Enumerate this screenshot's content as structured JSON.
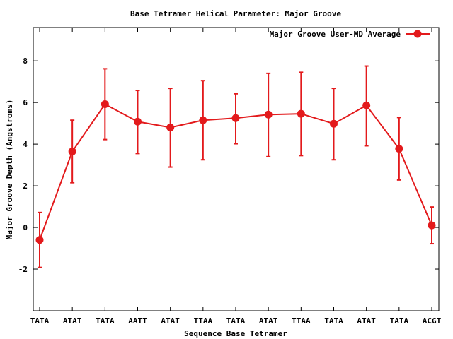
{
  "chart_data": {
    "type": "line",
    "title": "Base Tetramer Helical Parameter: Major Groove",
    "xlabel": "Sequence Base Tetramer",
    "ylabel": "Major Groove Depth (Angstroms)",
    "categories": [
      "TATA",
      "ATAT",
      "TATA",
      "AATT",
      "ATAT",
      "TTAA",
      "TATA",
      "ATAT",
      "TTAA",
      "TATA",
      "ATAT",
      "TATA",
      "ACGT"
    ],
    "ylim": [
      -4,
      9.6
    ],
    "yticks": [
      -2,
      0,
      2,
      4,
      6,
      8
    ],
    "grid": false,
    "legend_position": "top-right",
    "series": [
      {
        "name": "Major Groove User-MD Average",
        "color": "#e31a1c",
        "values": [
          -0.6,
          3.65,
          5.92,
          5.08,
          4.8,
          5.15,
          5.25,
          5.42,
          5.46,
          4.98,
          5.86,
          3.78,
          0.1
        ],
        "err_low": [
          -1.92,
          2.15,
          4.22,
          3.55,
          2.9,
          3.25,
          4.02,
          3.4,
          3.45,
          3.25,
          3.92,
          2.28,
          -0.78
        ],
        "err_high": [
          0.72,
          5.15,
          7.62,
          6.58,
          6.68,
          7.05,
          6.42,
          7.4,
          7.45,
          6.68,
          7.75,
          5.28,
          0.98
        ]
      }
    ]
  }
}
